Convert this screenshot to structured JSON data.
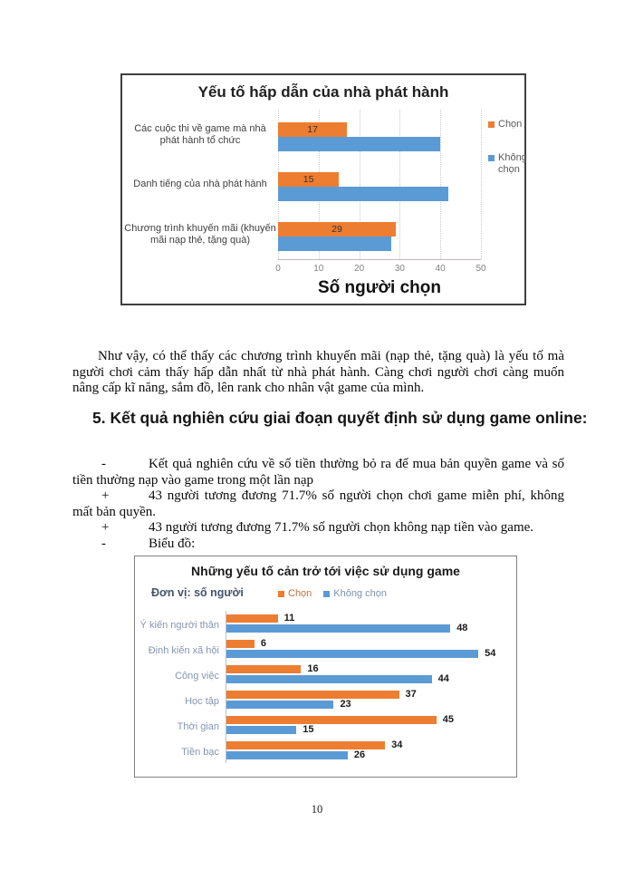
{
  "page": {
    "number": "10"
  },
  "colors": {
    "chon": "#ED7D31",
    "khong_chon": "#5B9BD5",
    "chart2_category_label": "#8496B0",
    "chart2_legend_chon_text": "#C4703B",
    "chart2_legend_khong_text": "#7C93AD"
  },
  "chart_data": [
    {
      "type": "bar",
      "orientation": "horizontal",
      "title": "Yếu tố hấp dẫn của nhà phát hành",
      "xlabel": "Số người chọn",
      "categories": [
        "Các cuộc thi về game mà nhà phát hành tổ chức",
        "Danh tiếng của nhà phát hành",
        "Chương trình khuyến mãi (khuyến mãi nạp thẻ, tặng quà)"
      ],
      "series": [
        {
          "name": "Chọn",
          "color": "#ED7D31",
          "values": [
            17,
            15,
            29
          ],
          "data_labels": true
        },
        {
          "name": "Không chọn",
          "color": "#5B9BD5",
          "values": [
            40,
            42,
            28
          ],
          "data_labels": false
        }
      ],
      "xlim": [
        0,
        50
      ],
      "xticks": [
        0,
        10,
        20,
        30,
        40,
        50
      ],
      "grid": true,
      "legend_position": "right"
    },
    {
      "type": "bar",
      "orientation": "horizontal",
      "title": "Những yếu tố cản trở tới việc sử dụng game",
      "unit_label": "Đơn vị: số người",
      "categories": [
        "Ý kiến người thân",
        "Định kiến xã hội",
        "Công việc",
        "Học tập",
        "Thời gian",
        "Tiền bạc"
      ],
      "series": [
        {
          "name": "Chọn",
          "color": "#ED7D31",
          "values": [
            11,
            6,
            16,
            37,
            45,
            34
          ],
          "data_labels": true
        },
        {
          "name": "Không chọn",
          "color": "#5B9BD5",
          "values": [
            48,
            54,
            44,
            23,
            15,
            26
          ],
          "data_labels": true
        }
      ],
      "xlim": [
        0,
        60
      ],
      "grid": false,
      "legend_position": "top",
      "data_label_position": "outside-end"
    }
  ],
  "paragraph": "Như vậy, có thể thấy các chương trình khuyến mãi (nạp thẻ, tặng quà) là yếu tố mà người chơi cảm thấy hấp dẫn nhất từ nhà phát hành. Càng chơi người chơi càng muốn nâng cấp kĩ năng, sắm đồ, lên rank cho nhân vật game của mình.",
  "heading": {
    "number": "5.",
    "text": "Kết quả nghiên cứu giai đoạn quyết định sử dụng game online:"
  },
  "bullets": [
    {
      "marker": "-",
      "text": "Kết quả nghiên cứu về số tiền thường bỏ ra để mua bản quyền game và số tiền thường nạp vào game trong một lần nạp"
    },
    {
      "marker": "+",
      "text": "43 người tương đương 71.7% số người chọn chơi game miễn phí, không mất bản quyền."
    },
    {
      "marker": "+",
      "text": "43 người tương đương 71.7% số người chọn không nạp tiền vào game."
    },
    {
      "marker": "-",
      "text": "Biểu đồ:"
    }
  ]
}
